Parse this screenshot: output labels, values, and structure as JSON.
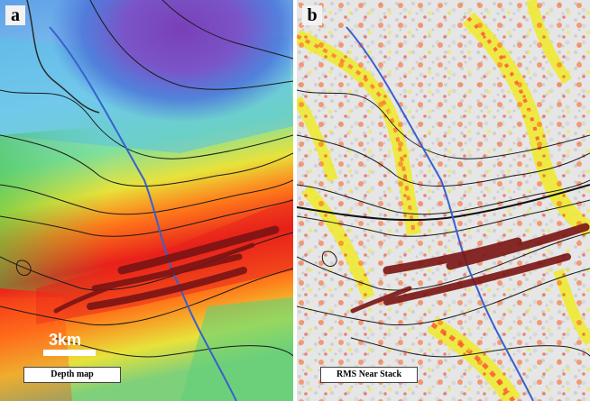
{
  "panels": [
    {
      "letter": "a",
      "caption": "Depth map",
      "scale_bar_label": "3km"
    },
    {
      "letter": "b",
      "caption": "RMS Near Stack"
    }
  ],
  "colors": {
    "deep": "#7a3fb8",
    "mid_blue": "#3aa0e0",
    "green": "#3fc14a",
    "yellow": "#e8e23a",
    "orange": "#ff7a1a",
    "red": "#e8201a",
    "well_path": "#3a5fd0",
    "fault_bodies": "#7a1414",
    "amplitude_high": "#ff5a1a",
    "amplitude_mid": "#f0ea2a",
    "background_rms": "#e6e6e6"
  }
}
